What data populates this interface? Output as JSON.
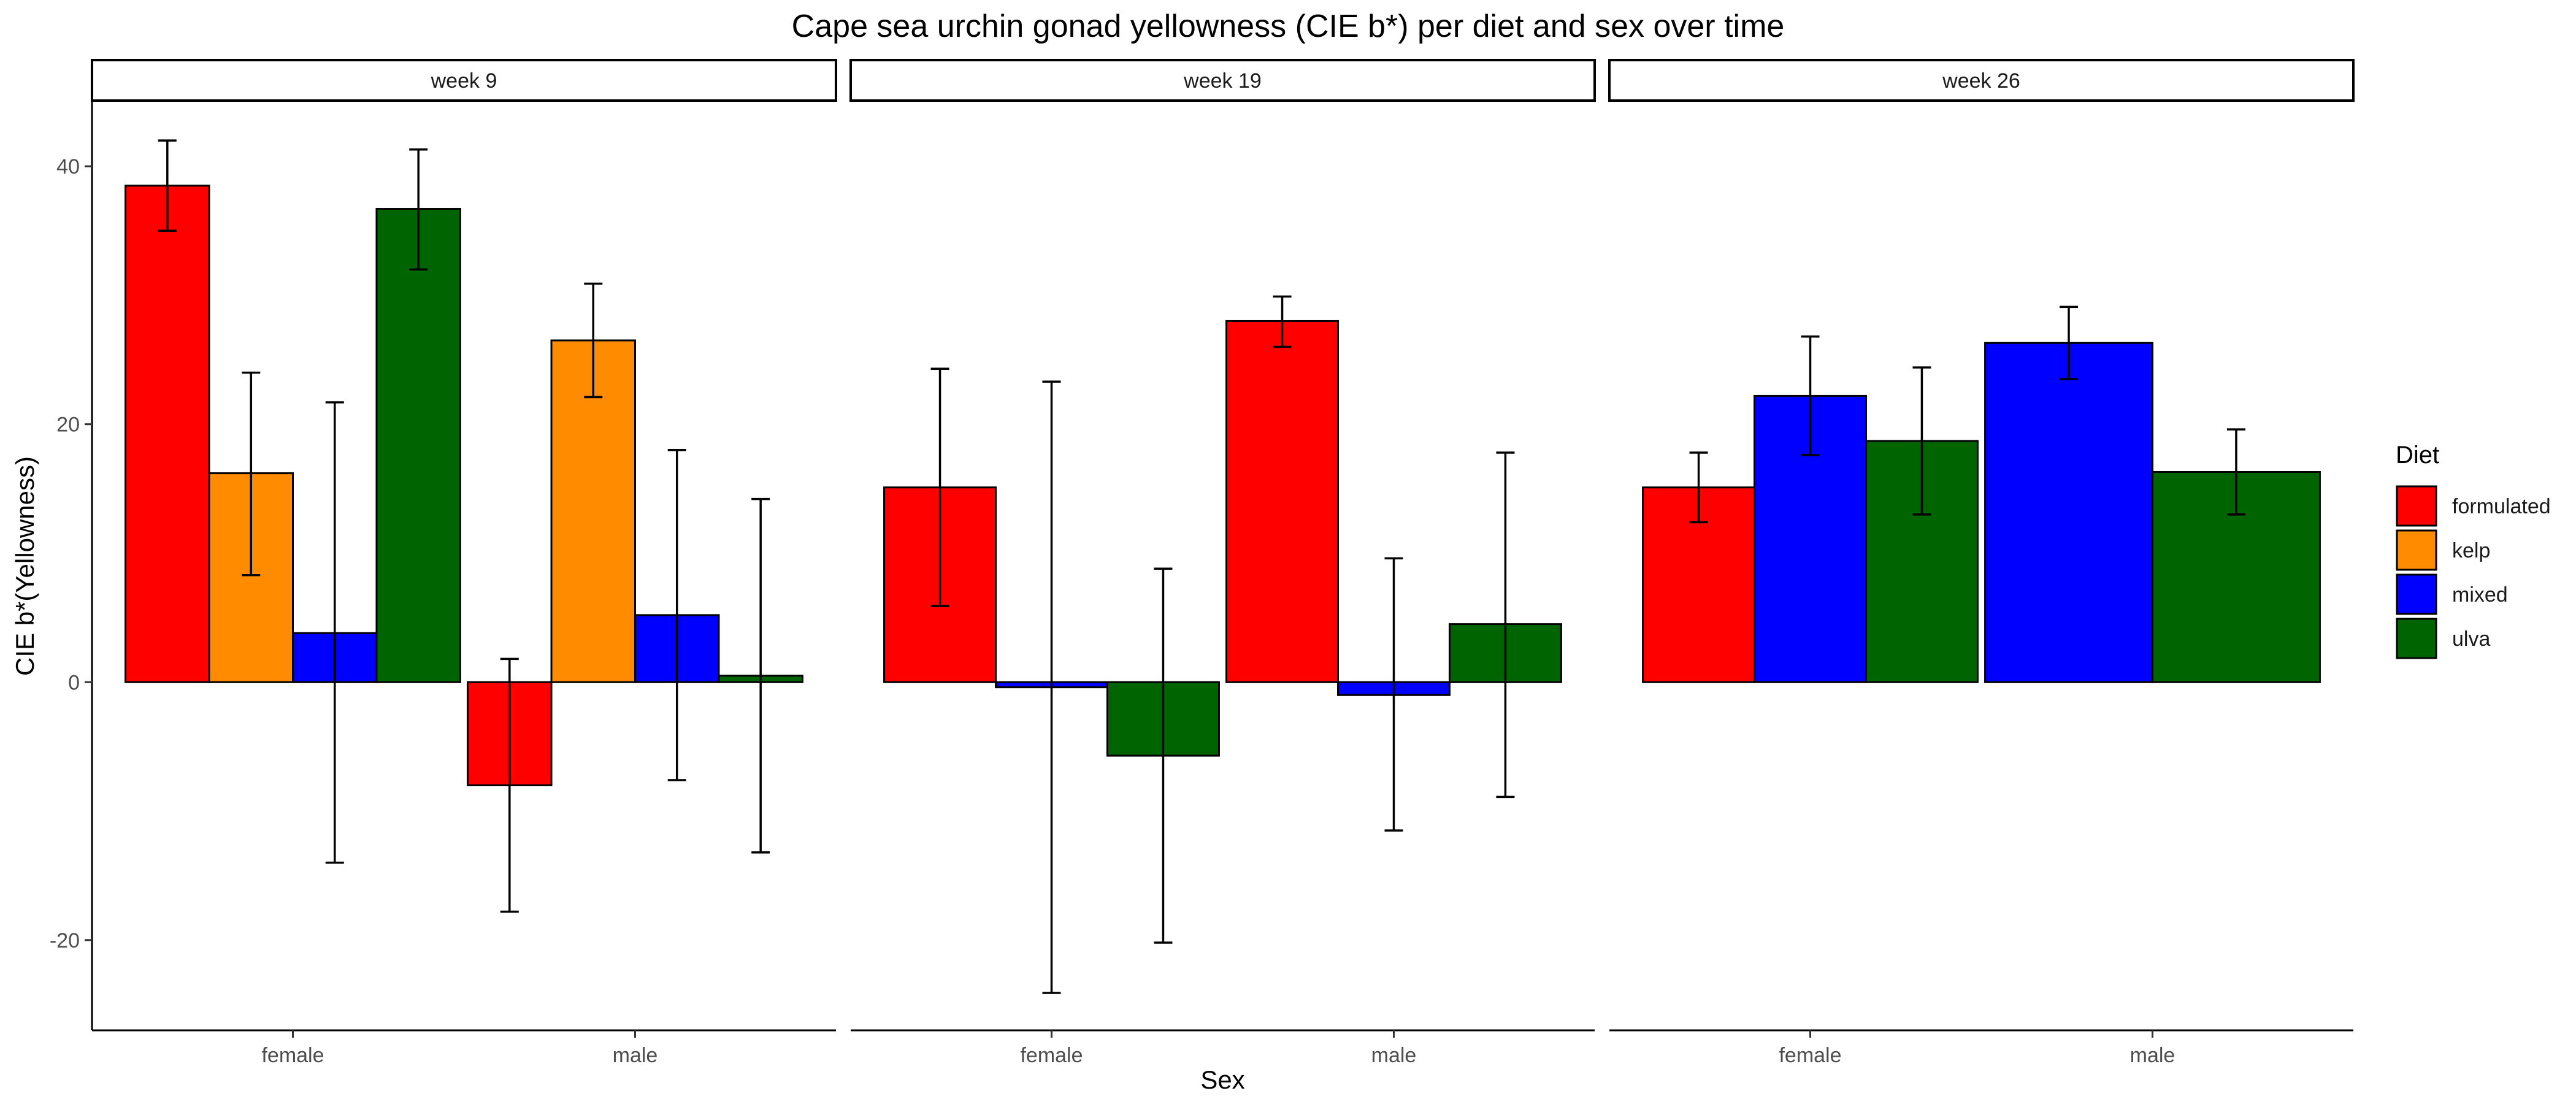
{
  "chart_data": {
    "type": "bar",
    "title": "Cape sea urchin gonad yellowness (CIE b*) per diet and sex over time",
    "xlabel": "Sex",
    "ylabel": "CIE b*(Yellowness)",
    "ylim": [
      -27,
      45
    ],
    "yticks": [
      -20,
      0,
      20,
      40
    ],
    "grid": false,
    "legend": {
      "title": "Diet",
      "position": "right",
      "entries": [
        {
          "name": "formulated",
          "color": "#ff0000"
        },
        {
          "name": "kelp",
          "color": "#ff8c00"
        },
        {
          "name": "mixed",
          "color": "#0000ff"
        },
        {
          "name": "ulva",
          "color": "#006400"
        }
      ]
    },
    "panels": [
      {
        "label": "week 9",
        "categories": [
          "female",
          "male"
        ],
        "groups": [
          {
            "sex": "female",
            "bars": [
              {
                "diet": "formulated",
                "value": 38.5,
                "err_low": 35.0,
                "err_high": 42.0
              },
              {
                "diet": "kelp",
                "value": 16.2,
                "err_low": 8.3,
                "err_high": 24.0
              },
              {
                "diet": "mixed",
                "value": 3.8,
                "err_low": -14.0,
                "err_high": 21.7
              },
              {
                "diet": "ulva",
                "value": 36.7,
                "err_low": 32.0,
                "err_high": 41.3
              }
            ]
          },
          {
            "sex": "male",
            "bars": [
              {
                "diet": "formulated",
                "value": -8.0,
                "err_low": -17.8,
                "err_high": 1.8
              },
              {
                "diet": "kelp",
                "value": 26.5,
                "err_low": 22.1,
                "err_high": 30.9
              },
              {
                "diet": "mixed",
                "value": 5.2,
                "err_low": -7.6,
                "err_high": 18.0
              },
              {
                "diet": "ulva",
                "value": 0.5,
                "err_low": -13.2,
                "err_high": 14.2
              }
            ]
          }
        ]
      },
      {
        "label": "week 19",
        "categories": [
          "female",
          "male"
        ],
        "groups": [
          {
            "sex": "female",
            "bars": [
              {
                "diet": "formulated",
                "value": 15.1,
                "err_low": 5.9,
                "err_high": 24.3
              },
              {
                "diet": "mixed",
                "value": -0.4,
                "err_low": -24.1,
                "err_high": 23.3
              },
              {
                "diet": "ulva",
                "value": -5.7,
                "err_low": -20.2,
                "err_high": 8.8
              }
            ]
          },
          {
            "sex": "male",
            "bars": [
              {
                "diet": "formulated",
                "value": 28.0,
                "err_low": 26.0,
                "err_high": 29.9
              },
              {
                "diet": "mixed",
                "value": -1.0,
                "err_low": -11.5,
                "err_high": 9.6
              },
              {
                "diet": "ulva",
                "value": 4.5,
                "err_low": -8.9,
                "err_high": 17.8
              }
            ]
          }
        ]
      },
      {
        "label": "week 26",
        "categories": [
          "female",
          "male"
        ],
        "groups": [
          {
            "sex": "female",
            "bars": [
              {
                "diet": "formulated",
                "value": 15.1,
                "err_low": 12.4,
                "err_high": 17.8
              },
              {
                "diet": "mixed",
                "value": 22.2,
                "err_low": 17.6,
                "err_high": 26.8
              },
              {
                "diet": "ulva",
                "value": 18.7,
                "err_low": 13.0,
                "err_high": 24.4
              }
            ]
          },
          {
            "sex": "male",
            "bars": [
              {
                "diet": "mixed",
                "value": 26.3,
                "err_low": 23.5,
                "err_high": 29.1
              },
              {
                "diet": "ulva",
                "value": 16.3,
                "err_low": 13.0,
                "err_high": 19.6
              }
            ]
          }
        ]
      }
    ]
  }
}
